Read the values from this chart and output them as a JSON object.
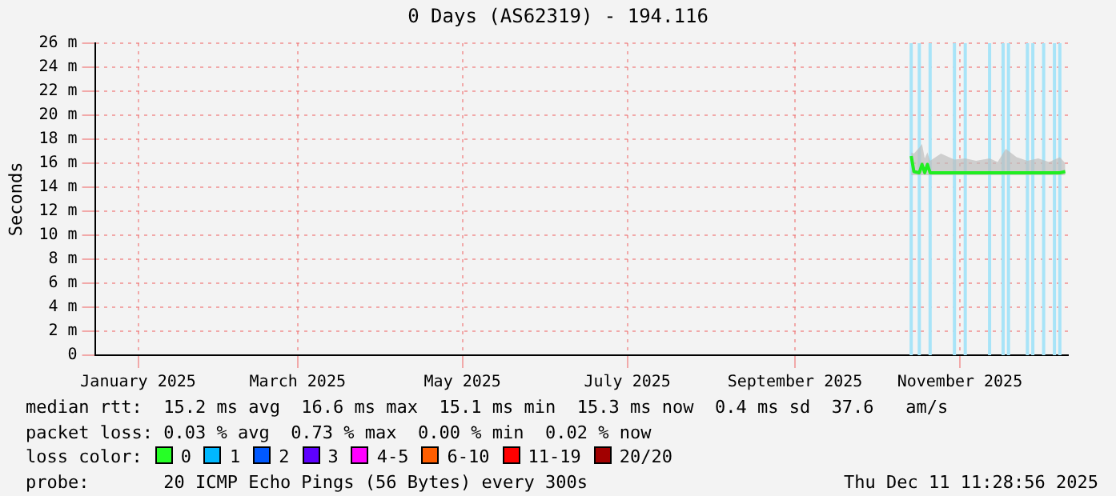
{
  "chart_data": {
    "type": "line",
    "title": "0 Days (AS62319) - 194.116",
    "ylabel": "Seconds",
    "xlim": [
      "2024-12-16",
      "2025-12-11"
    ],
    "xticks": [
      {
        "value": "2025-01-01",
        "label": "January 2025"
      },
      {
        "value": "2025-03-01",
        "label": "March 2025"
      },
      {
        "value": "2025-05-01",
        "label": "May 2025"
      },
      {
        "value": "2025-07-01",
        "label": "July 2025"
      },
      {
        "value": "2025-09-01",
        "label": "September 2025"
      },
      {
        "value": "2025-11-01",
        "label": "November 2025"
      }
    ],
    "ylim": [
      0,
      26
    ],
    "yticks": [
      0,
      {
        "value": 2,
        "label": "2 m"
      },
      {
        "value": 4,
        "label": "4 m"
      },
      {
        "value": 6,
        "label": "6 m"
      },
      {
        "value": 8,
        "label": "8 m"
      },
      {
        "value": 10,
        "label": "10 m"
      },
      {
        "value": 12,
        "label": "12 m"
      },
      {
        "value": 14,
        "label": "14 m"
      },
      {
        "value": 16,
        "label": "16 m"
      },
      {
        "value": 18,
        "label": "18 m"
      },
      {
        "value": 20,
        "label": "20 m"
      },
      {
        "value": 22,
        "label": "22 m"
      },
      {
        "value": 24,
        "label": "24 m"
      },
      {
        "value": 26,
        "label": "26 m"
      }
    ],
    "grid": true,
    "legend": false,
    "marker": "none",
    "line_style": "solid",
    "series": [
      {
        "color": "#20ee20",
        "x": [
          "2025-10-14",
          "2025-10-15",
          "2025-10-17",
          "2025-10-18",
          "2025-10-19",
          "2025-10-20",
          "2025-10-21",
          "2025-10-25",
          "2025-10-30",
          "2025-11-03",
          "2025-11-07",
          "2025-11-12",
          "2025-11-15",
          "2025-11-18",
          "2025-11-22",
          "2025-11-26",
          "2025-11-30",
          "2025-12-04",
          "2025-12-08",
          "2025-12-10"
        ],
        "values": [
          16.6,
          15.3,
          15.2,
          15.9,
          15.2,
          15.9,
          15.2,
          15.2,
          15.2,
          15.2,
          15.2,
          15.2,
          15.2,
          15.2,
          15.2,
          15.2,
          15.2,
          15.2,
          15.2,
          15.3
        ],
        "lower": [
          15.0,
          15.0,
          15.0,
          15.0,
          15.0,
          15.0,
          15.0,
          15.0,
          15.0,
          15.0,
          15.0,
          15.0,
          15.0,
          15.0,
          15.0,
          15.0,
          15.0,
          15.0,
          15.0,
          15.0
        ],
        "upper": [
          16.9,
          16.8,
          17.3,
          17.6,
          16.4,
          16.9,
          16.2,
          16.8,
          16.3,
          16.4,
          16.2,
          16.4,
          16.1,
          17.2,
          16.5,
          16.2,
          16.4,
          16.1,
          16.5,
          16.0
        ]
      }
    ],
    "ref_lines": [
      {
        "axis": "x",
        "value": "2025-10-14",
        "color": "#a8e4f8"
      },
      {
        "axis": "x",
        "value": "2025-10-17",
        "color": "#a8e4f8"
      },
      {
        "axis": "x",
        "value": "2025-10-21",
        "color": "#a8e4f8"
      },
      {
        "axis": "x",
        "value": "2025-10-30",
        "color": "#a8e4f8"
      },
      {
        "axis": "x",
        "value": "2025-11-03",
        "color": "#a8e4f8"
      },
      {
        "axis": "x",
        "value": "2025-11-12",
        "color": "#a8e4f8"
      },
      {
        "axis": "x",
        "value": "2025-11-17",
        "color": "#a8e4f8"
      },
      {
        "axis": "x",
        "value": "2025-11-19",
        "color": "#a8e4f8"
      },
      {
        "axis": "x",
        "value": "2025-11-26",
        "color": "#a8e4f8"
      },
      {
        "axis": "x",
        "value": "2025-11-28",
        "color": "#a8e4f8"
      },
      {
        "axis": "x",
        "value": "2025-12-02",
        "color": "#a8e4f8"
      },
      {
        "axis": "x",
        "value": "2025-12-06",
        "color": "#a8e4f8"
      },
      {
        "axis": "x",
        "value": "2025-12-08",
        "color": "#a8e4f8"
      }
    ],
    "annotations": [
      "median rtt:  15.2 ms avg  16.6 ms max  15.1 ms min  15.3 ms now  0.4 ms sd  37.6   am/s",
      "packet loss: 0.03 % avg  0.73 % max  0.00 % min  0.02 % now",
      "loss color:",
      "0",
      "1",
      "2",
      "3",
      "4-5",
      "6-10",
      "11-19",
      "20/20",
      "probe:       20 ICMP Echo Pings (56 Bytes) every 300s",
      "Thu Dec 11 11:28:56 2025"
    ]
  }
}
